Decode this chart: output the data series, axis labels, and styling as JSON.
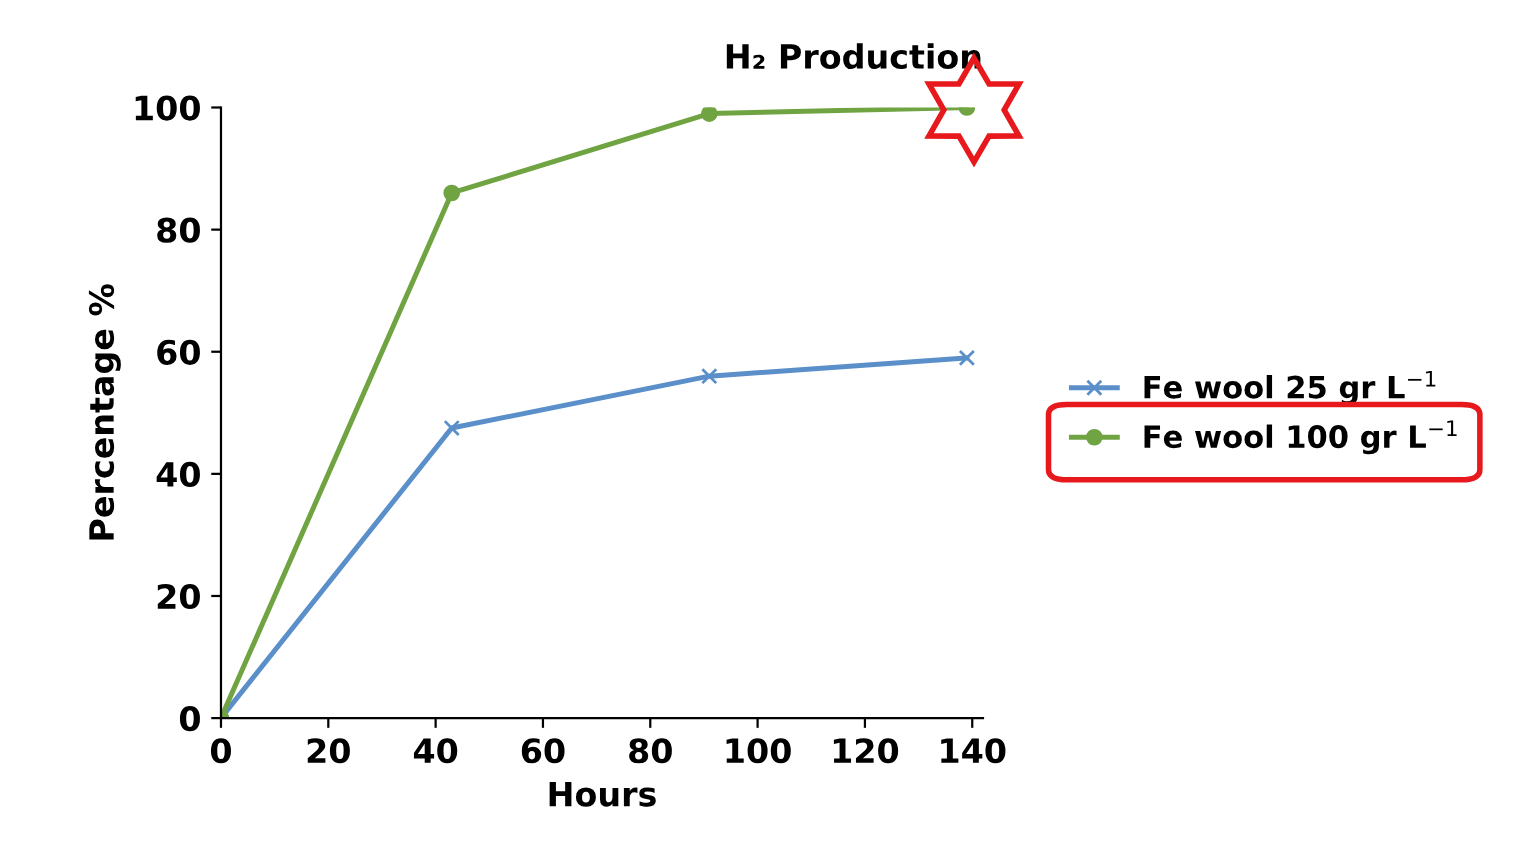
{
  "chart_data": {
    "type": "line",
    "title": "H₂ Production",
    "xlabel": "Hours",
    "ylabel": "Percentage %",
    "x": [
      0,
      43,
      91,
      139
    ],
    "series": [
      {
        "name": "Fe wool 25 gr L$^{−1}$",
        "color": "#5b8fc9",
        "values": [
          0,
          47.5,
          56,
          59
        ],
        "marker": "cross"
      },
      {
        "name": "Fe wool 100 gr L$^{−1}$",
        "color": "#70a442",
        "values": [
          0,
          86,
          99,
          100
        ],
        "marker": "circle"
      }
    ],
    "xlim": [
      0,
      142
    ],
    "ylim": [
      0,
      100
    ],
    "xticks": [
      0,
      20,
      40,
      60,
      80,
      100,
      120,
      140
    ],
    "yticks": [
      0,
      20,
      40,
      60,
      80,
      100
    ],
    "grid": false,
    "legend": "right",
    "line_style": "solid"
  }
}
